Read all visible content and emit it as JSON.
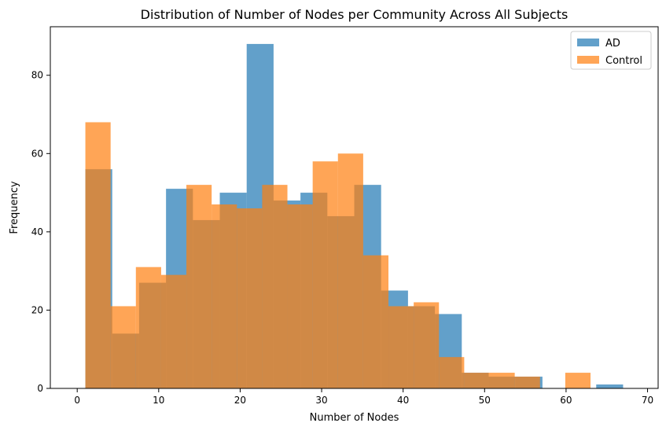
{
  "chart_data": {
    "type": "bar",
    "title": "Distribution of Number of Nodes per Community Across All Subjects",
    "xlabel": "Number of Nodes",
    "ylabel": "Frequency",
    "xlim": [
      -3.3,
      71.3
    ],
    "ylim": [
      0,
      92.4
    ],
    "xticks": [
      0,
      10,
      20,
      30,
      40,
      50,
      60,
      70
    ],
    "yticks": [
      0,
      20,
      40,
      60,
      80
    ],
    "grid": false,
    "legend_position": "top-right",
    "series": [
      {
        "name": "AD",
        "color": "#1f77b4",
        "opacity": 0.7,
        "bin_edges": [
          1,
          4.3,
          7.6,
          10.9,
          14.2,
          17.5,
          20.8,
          24.1,
          27.4,
          30.7,
          34.0,
          37.3,
          40.6,
          43.9,
          47.2,
          50.5,
          53.8,
          57.1,
          60.4,
          63.7,
          67.0
        ],
        "counts": [
          56,
          14,
          27,
          51,
          43,
          50,
          88,
          48,
          50,
          44,
          52,
          25,
          21,
          19,
          4,
          3,
          3,
          0,
          0,
          1
        ]
      },
      {
        "name": "Control",
        "color": "#ff7f0e",
        "opacity": 0.7,
        "bin_edges": [
          1,
          4.1,
          7.2,
          10.3,
          13.4,
          16.5,
          19.6,
          22.7,
          25.8,
          28.9,
          32.0,
          35.1,
          38.2,
          41.3,
          44.4,
          47.5,
          50.6,
          53.7,
          56.8,
          59.9,
          63.0
        ],
        "counts": [
          68,
          21,
          31,
          29,
          52,
          47,
          46,
          52,
          47,
          58,
          60,
          34,
          21,
          22,
          8,
          4,
          4,
          3,
          0,
          4
        ]
      }
    ]
  }
}
